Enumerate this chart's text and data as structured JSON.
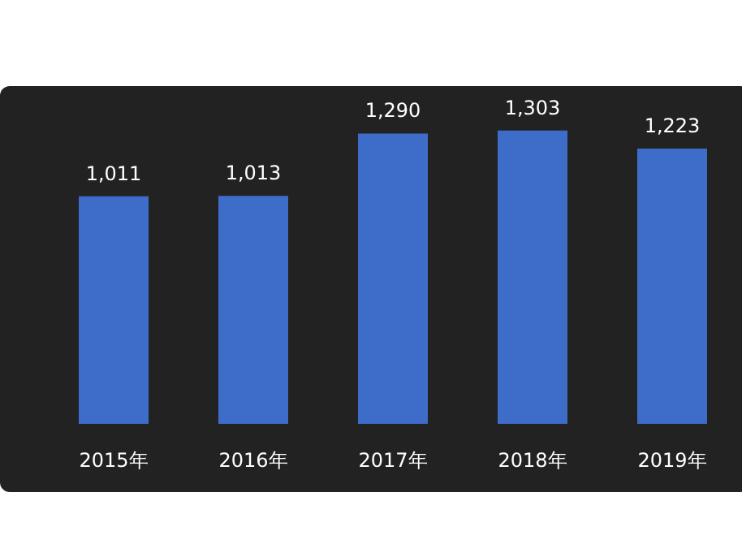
{
  "chart_data": {
    "type": "bar",
    "categories": [
      "2015年",
      "2016年",
      "2017年",
      "2018年",
      "2019年"
    ],
    "values": [
      1011,
      1013,
      1290,
      1303,
      1223
    ],
    "color": "#3e6cc9",
    "value_labels": [
      "1,011",
      "1,013",
      "1,290",
      "1,303",
      "1,223"
    ],
    "grid": false,
    "legend": false
  }
}
